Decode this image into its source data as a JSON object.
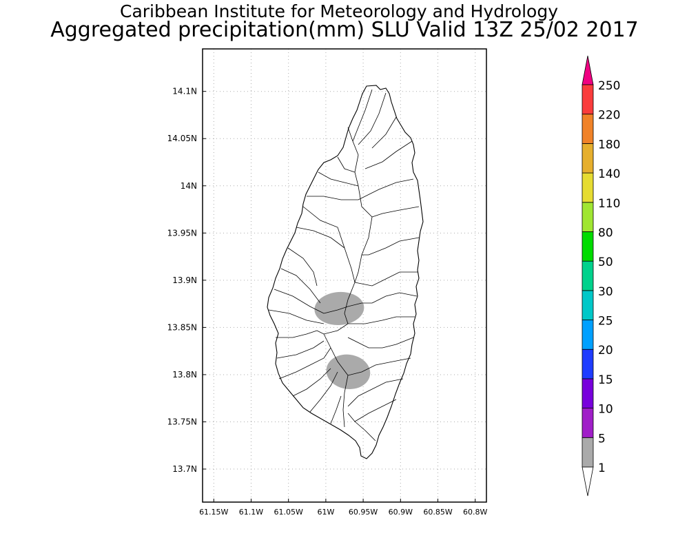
{
  "header": {
    "title_line1": "Caribbean Institute for Meteorology and Hydrology",
    "title_line2": "Aggregated precipitation(mm) SLU Valid 13Z 25/02 2017"
  },
  "map": {
    "region": "Saint Lucia",
    "lon_ticks": [
      "61.15W",
      "61.1W",
      "61.05W",
      "61W",
      "60.95W",
      "60.9W",
      "60.85W",
      "60.8W"
    ],
    "lat_ticks": [
      "14.1N",
      "14.05N",
      "14N",
      "13.95N",
      "13.9N",
      "13.85N",
      "13.8N",
      "13.75N",
      "13.7N"
    ],
    "lon_range": [
      -61.165,
      -60.785
    ],
    "lat_range": [
      13.665,
      14.145
    ],
    "grid": true,
    "precip_areas": [
      {
        "category": "1-5",
        "center_lon": -60.982,
        "center_lat": 13.87
      },
      {
        "category": "1-5",
        "center_lon": -60.97,
        "center_lat": 13.803
      }
    ]
  },
  "colorbar": {
    "levels": [
      "1",
      "5",
      "10",
      "15",
      "20",
      "25",
      "30",
      "50",
      "80",
      "110",
      "140",
      "180",
      "220",
      "250"
    ],
    "colors": [
      "#aaaaaa",
      "#a01ec8",
      "#7800dc",
      "#1e3cff",
      "#00a0ff",
      "#00c8c8",
      "#00d28c",
      "#00dc00",
      "#a0e632",
      "#e6dc32",
      "#e6af2d",
      "#f08228",
      "#fa3c3c",
      "#f00082"
    ],
    "below_color": "#ffffff",
    "above_color": "#f00082"
  }
}
